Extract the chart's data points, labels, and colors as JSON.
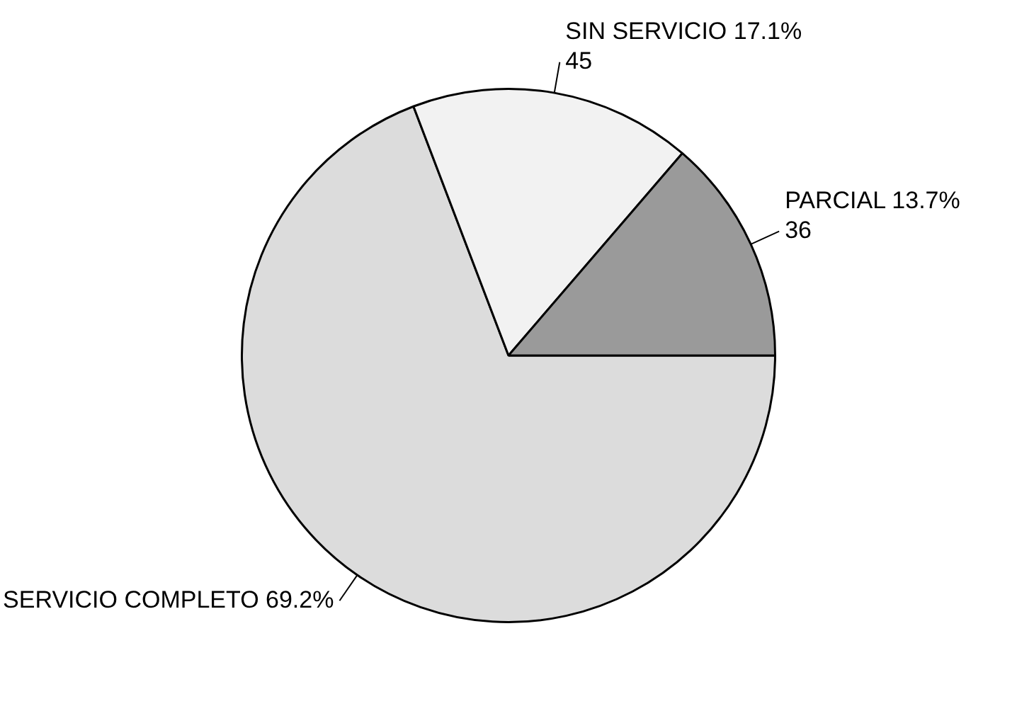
{
  "chart_data": {
    "type": "pie",
    "categories": [
      "SERVICIO COMPLETO",
      "SIN SERVICIO",
      "PARCIAL"
    ],
    "values": [
      69.2,
      17.1,
      13.7
    ],
    "colors": [
      "#dcdcdc",
      "#f2f2f2",
      "#9a9a9a"
    ],
    "value_labels": [
      "69.2%",
      "17.1%\n45",
      "13.7%\n36"
    ],
    "legend": false
  }
}
